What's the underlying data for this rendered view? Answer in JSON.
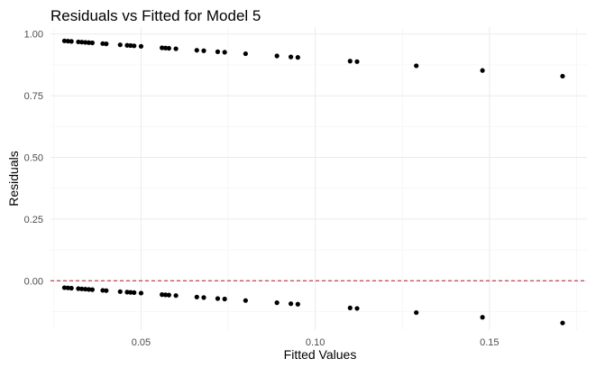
{
  "chart_data": {
    "type": "scatter",
    "title": "Residuals vs Fitted for Model 5",
    "xlabel": "Fitted Values",
    "ylabel": "Residuals",
    "xlim": [
      0.024,
      0.178
    ],
    "ylim": [
      -0.2,
      1.028
    ],
    "x_ticks": [
      0.05,
      0.1,
      0.15
    ],
    "x_tick_labels": [
      "0.05",
      "0.10",
      "0.15"
    ],
    "y_ticks": [
      0,
      0.25,
      0.5,
      0.75,
      1.0
    ],
    "y_tick_labels": [
      "0.00",
      "0.25",
      "0.50",
      "0.75",
      "1.00"
    ],
    "grid": true,
    "reference_line": {
      "y": 0,
      "style": "dashed",
      "color": "#b2182b"
    },
    "point_color": "#000000",
    "x": [
      0.028,
      0.029,
      0.03,
      0.032,
      0.033,
      0.034,
      0.035,
      0.036,
      0.039,
      0.04,
      0.044,
      0.046,
      0.047,
      0.048,
      0.05,
      0.056,
      0.057,
      0.058,
      0.06,
      0.066,
      0.068,
      0.072,
      0.074,
      0.08,
      0.089,
      0.093,
      0.095,
      0.11,
      0.112,
      0.129,
      0.148,
      0.171
    ],
    "y": [
      0.972,
      0.971,
      0.97,
      0.968,
      0.967,
      0.966,
      0.965,
      0.964,
      0.961,
      0.96,
      0.956,
      0.954,
      0.953,
      0.952,
      0.95,
      0.944,
      0.943,
      0.942,
      0.94,
      0.934,
      0.932,
      0.928,
      0.926,
      0.92,
      0.911,
      0.907,
      0.905,
      0.89,
      0.888,
      0.871,
      0.852,
      0.829
    ],
    "x2": [
      0.028,
      0.029,
      0.03,
      0.032,
      0.033,
      0.034,
      0.035,
      0.036,
      0.039,
      0.04,
      0.044,
      0.046,
      0.047,
      0.048,
      0.05,
      0.056,
      0.057,
      0.058,
      0.06,
      0.066,
      0.068,
      0.072,
      0.074,
      0.08,
      0.089,
      0.093,
      0.095,
      0.11,
      0.112,
      0.129,
      0.148,
      0.171
    ],
    "y2": [
      -0.028,
      -0.029,
      -0.03,
      -0.032,
      -0.033,
      -0.034,
      -0.035,
      -0.036,
      -0.039,
      -0.04,
      -0.044,
      -0.046,
      -0.047,
      -0.048,
      -0.05,
      -0.056,
      -0.057,
      -0.058,
      -0.06,
      -0.066,
      -0.068,
      -0.072,
      -0.074,
      -0.08,
      -0.089,
      -0.093,
      -0.095,
      -0.11,
      -0.112,
      -0.129,
      -0.148,
      -0.171
    ]
  }
}
